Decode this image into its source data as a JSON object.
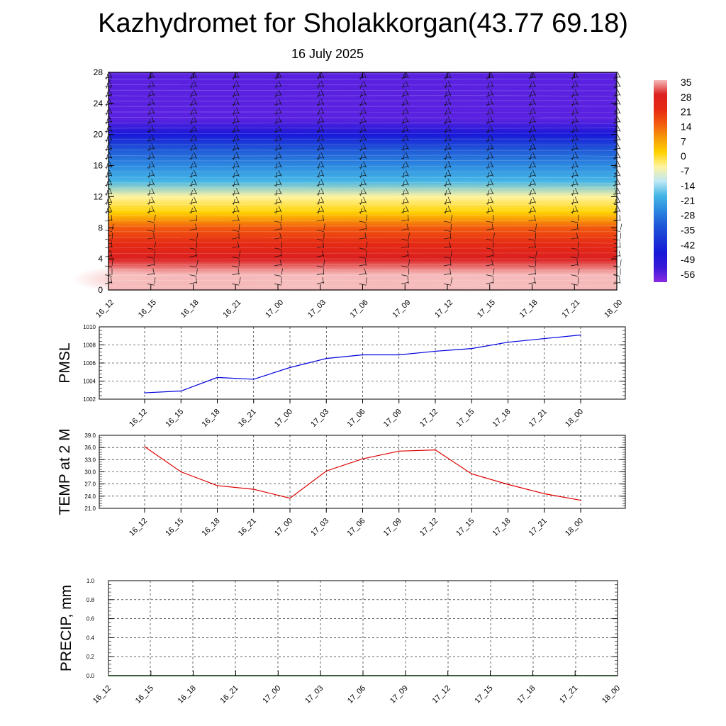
{
  "header": {
    "title": "Kazhydromet for Sholakkorgan(43.77 69.18)",
    "subtitle": "16 July 2025"
  },
  "colorbar": {
    "labels": [
      "35",
      "28",
      "21",
      "14",
      "7",
      "0",
      "-7",
      "-14",
      "-21",
      "-28",
      "-35",
      "-42",
      "-49",
      "-56"
    ]
  },
  "chart_data": [
    {
      "type": "heatmap",
      "title": "",
      "ylabel": "",
      "ylim": [
        0,
        28
      ],
      "yticks": [
        0,
        4,
        8,
        12,
        16,
        20,
        24,
        28
      ],
      "x": [
        "16_12",
        "16_15",
        "16_18",
        "16_21",
        "17_00",
        "17_03",
        "17_06",
        "17_09",
        "17_12",
        "17_15",
        "17_18",
        "17_21",
        "18_00"
      ],
      "z_levels_km": [
        0,
        2,
        4,
        6,
        8,
        10,
        12,
        14,
        16,
        18,
        20,
        22,
        24,
        26,
        28
      ],
      "temperature_profile_C": [
        34,
        28,
        23,
        15,
        8,
        -2,
        -12,
        -22,
        -32,
        -42,
        -52,
        -58,
        -60,
        -60,
        -60
      ],
      "color_scale": [
        "#f7b8b8",
        "#e02020",
        "#f05a10",
        "#ffd300",
        "#fff8a0",
        "#43b8e8",
        "#1050d0",
        "#1515e0",
        "#8a2be2"
      ],
      "wind_barbs": true
    },
    {
      "type": "line",
      "ylabel": "PMSL",
      "ylim": [
        1002,
        1010
      ],
      "yticks": [
        1002,
        1004,
        1006,
        1008,
        1010
      ],
      "x": [
        "16_12",
        "16_15",
        "16_18",
        "16_21",
        "17_00",
        "17_03",
        "17_06",
        "17_09",
        "17_12",
        "17_15",
        "17_18",
        "17_21",
        "18_00"
      ],
      "series": [
        {
          "color": "#0000dd",
          "values": [
            1002.7,
            1002.9,
            1004.4,
            1004.2,
            1005.5,
            1006.5,
            1006.9,
            1006.9,
            1007.3,
            1007.6,
            1008.3,
            1008.7,
            1009.1
          ]
        }
      ],
      "grid": true
    },
    {
      "type": "line",
      "ylabel": "TEMP at 2 M",
      "ylim": [
        21,
        39
      ],
      "yticks": [
        "21.0",
        "24.0",
        "27.0",
        "30.0",
        "33.0",
        "36.0",
        "39.0"
      ],
      "x": [
        "16_12",
        "16_15",
        "16_18",
        "16_21",
        "17_00",
        "17_03",
        "17_06",
        "17_09",
        "17_12",
        "17_15",
        "17_18",
        "17_21",
        "18_00"
      ],
      "series": [
        {
          "color": "#dd0000",
          "values": [
            36.2,
            30.0,
            26.6,
            25.7,
            23.5,
            30.2,
            33.2,
            35.1,
            35.4,
            29.5,
            26.9,
            24.6,
            23.0
          ]
        }
      ],
      "grid": true
    },
    {
      "type": "line",
      "ylabel": "PRECIP, mm",
      "ylim": [
        0,
        1
      ],
      "yticks": [
        "0.0",
        "0.2",
        "0.4",
        "0.6",
        "0.8",
        "1.0"
      ],
      "x": [
        "16_12",
        "16_15",
        "16_18",
        "16_21",
        "17_00",
        "17_03",
        "17_06",
        "17_09",
        "17_12",
        "17_15",
        "17_18",
        "17_21",
        "18_00"
      ],
      "series": [
        {
          "color": "#007700",
          "values": [
            0,
            0,
            0,
            0,
            0,
            0,
            0,
            0,
            0,
            0,
            0,
            0,
            0
          ]
        }
      ],
      "grid": true
    }
  ]
}
